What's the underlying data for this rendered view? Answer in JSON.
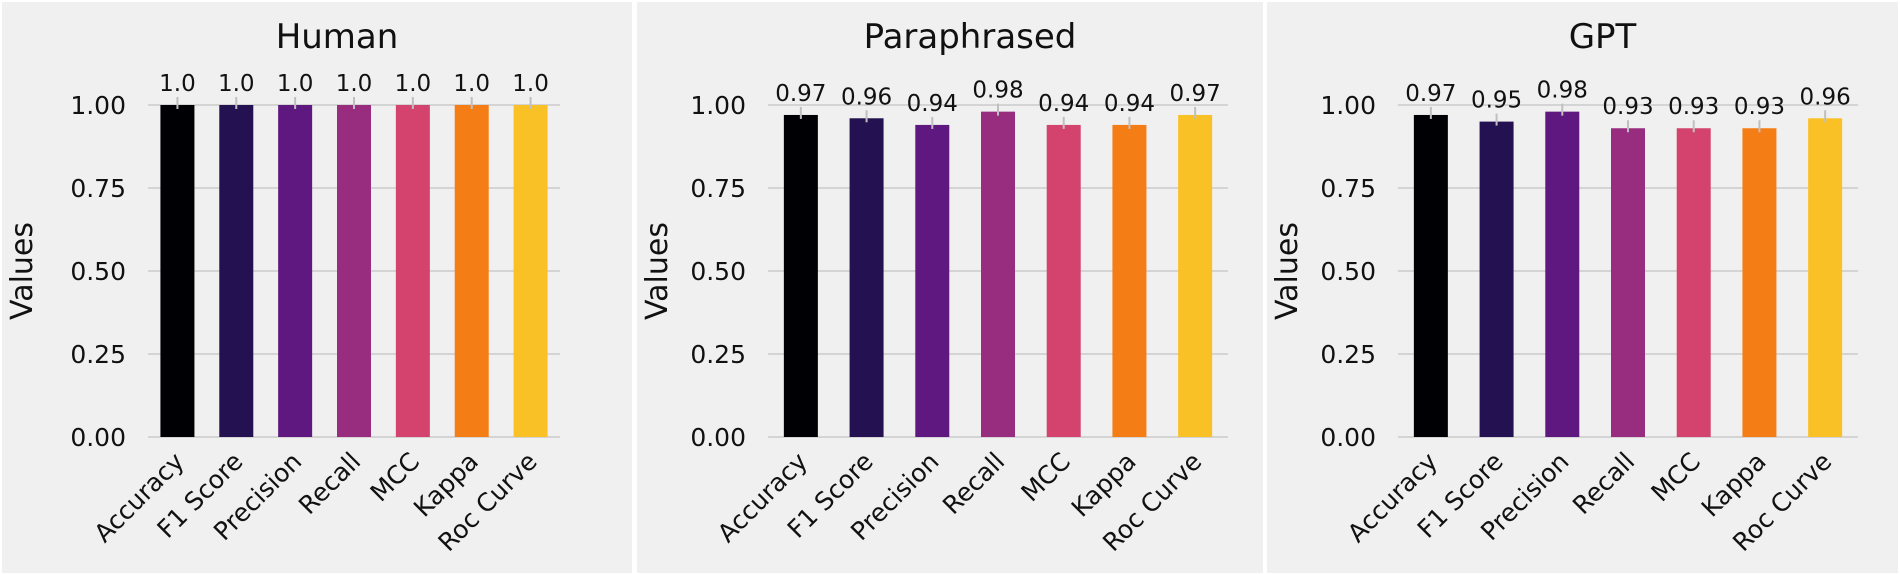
{
  "chart_data": [
    {
      "type": "bar",
      "title": "Human",
      "xlabel": "",
      "ylabel": "Values",
      "ylim": [
        0,
        1.0
      ],
      "yticks": [
        "0.00",
        "0.25",
        "0.50",
        "0.75",
        "1.00"
      ],
      "categories": [
        "Accuracy",
        "F1 Score",
        "Precision",
        "Recall",
        "MCC",
        "Kappa",
        "Roc Curve"
      ],
      "values": [
        1.0,
        1.0,
        1.0,
        1.0,
        1.0,
        1.0,
        1.0
      ],
      "value_labels": [
        "1.0",
        "1.0",
        "1.0",
        "1.0",
        "1.0",
        "1.0",
        "1.0"
      ],
      "colors": [
        "#000004",
        "#231151",
        "#5f187f",
        "#982d80",
        "#d3436e",
        "#f57d15",
        "#fac127"
      ],
      "grid": true
    },
    {
      "type": "bar",
      "title": "Paraphrased",
      "xlabel": "",
      "ylabel": "Values",
      "ylim": [
        0,
        1.0
      ],
      "yticks": [
        "0.00",
        "0.25",
        "0.50",
        "0.75",
        "1.00"
      ],
      "categories": [
        "Accuracy",
        "F1 Score",
        "Precision",
        "Recall",
        "MCC",
        "Kappa",
        "Roc Curve"
      ],
      "values": [
        0.97,
        0.96,
        0.94,
        0.98,
        0.94,
        0.94,
        0.97
      ],
      "value_labels": [
        "0.97",
        "0.96",
        "0.94",
        "0.98",
        "0.94",
        "0.94",
        "0.97"
      ],
      "colors": [
        "#000004",
        "#231151",
        "#5f187f",
        "#982d80",
        "#d3436e",
        "#f57d15",
        "#fac127"
      ],
      "grid": true
    },
    {
      "type": "bar",
      "title": "GPT",
      "xlabel": "",
      "ylabel": "Values",
      "ylim": [
        0,
        1.0
      ],
      "yticks": [
        "0.00",
        "0.25",
        "0.50",
        "0.75",
        "1.00"
      ],
      "categories": [
        "Accuracy",
        "F1 Score",
        "Precision",
        "Recall",
        "MCC",
        "Kappa",
        "Roc Curve"
      ],
      "values": [
        0.97,
        0.95,
        0.98,
        0.93,
        0.93,
        0.93,
        0.96
      ],
      "value_labels": [
        "0.97",
        "0.95",
        "0.98",
        "0.93",
        "0.93",
        "0.93",
        "0.96"
      ],
      "colors": [
        "#000004",
        "#231151",
        "#5f187f",
        "#982d80",
        "#d3436e",
        "#f57d15",
        "#fac127"
      ],
      "grid": true
    }
  ]
}
